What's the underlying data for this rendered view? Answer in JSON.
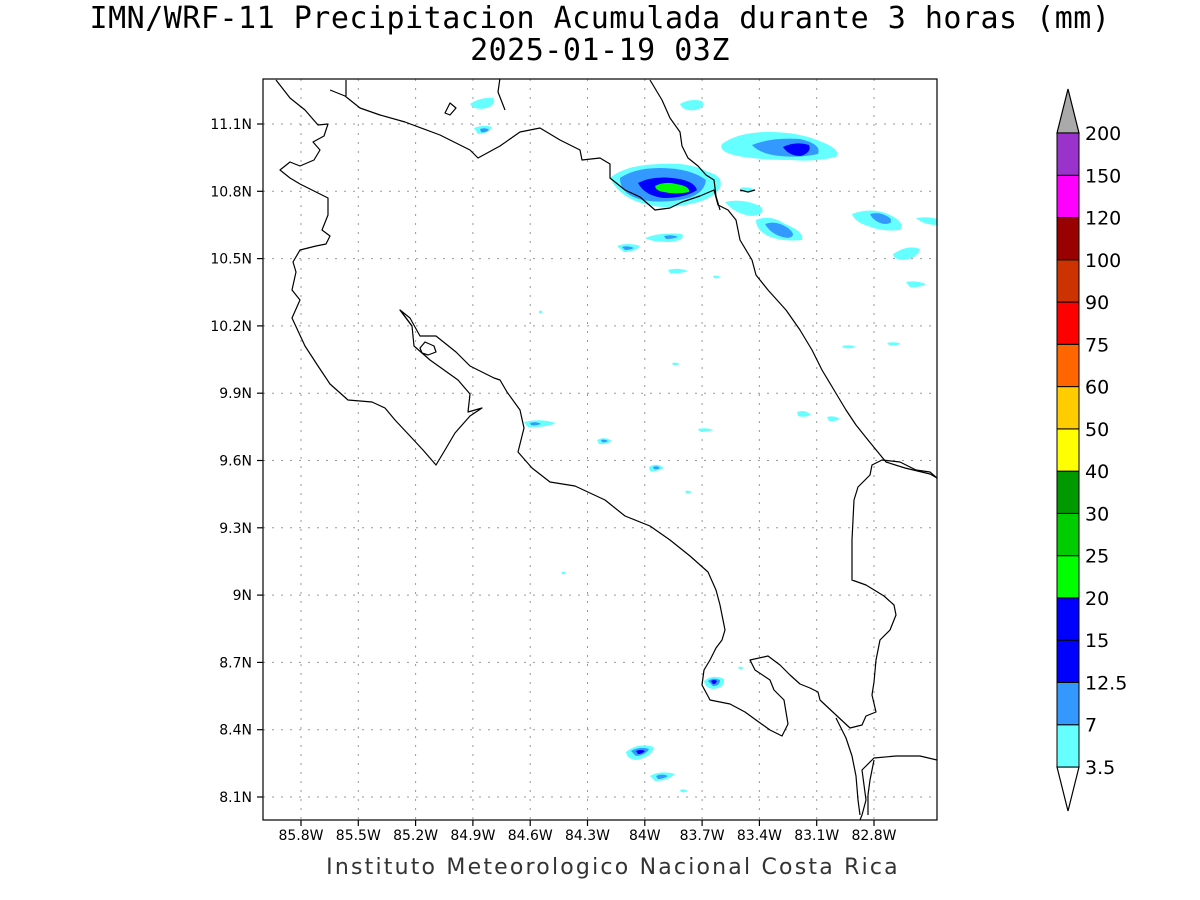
{
  "title_line1": "IMN/WRF-11 Precipitacion Acumulada durante 3 horas (mm)",
  "title_line2": "2025-01-19 03Z",
  "footer": "Instituto Meteorologico Nacional Costa Rica",
  "lat_ticks": [
    "11.1N",
    "10.8N",
    "10.5N",
    "10.2N",
    "9.9N",
    "9.6N",
    "9.3N",
    "9N",
    "8.7N",
    "8.4N",
    "8.1N"
  ],
  "lon_ticks": [
    "85.8W",
    "85.5W",
    "85.2W",
    "84.9W",
    "84.6W",
    "84.3W",
    "84W",
    "83.7W",
    "83.4W",
    "83.1W",
    "82.8W"
  ],
  "colorbar": {
    "levels": [
      "3.5",
      "7",
      "12.5",
      "15",
      "20",
      "25",
      "30",
      "40",
      "50",
      "60",
      "75",
      "90",
      "100",
      "120",
      "150",
      "200"
    ],
    "colors": [
      "#66ffff",
      "#3399ff",
      "#0000ff",
      "#0000ff",
      "#00ff00",
      "#00cc00",
      "#009900",
      "#ffff00",
      "#ffcc00",
      "#ff6600",
      "#ff0000",
      "#cc3300",
      "#990000",
      "#ff00ff",
      "#9933cc",
      "#f5f5f5",
      "#aaaaaa"
    ]
  }
}
